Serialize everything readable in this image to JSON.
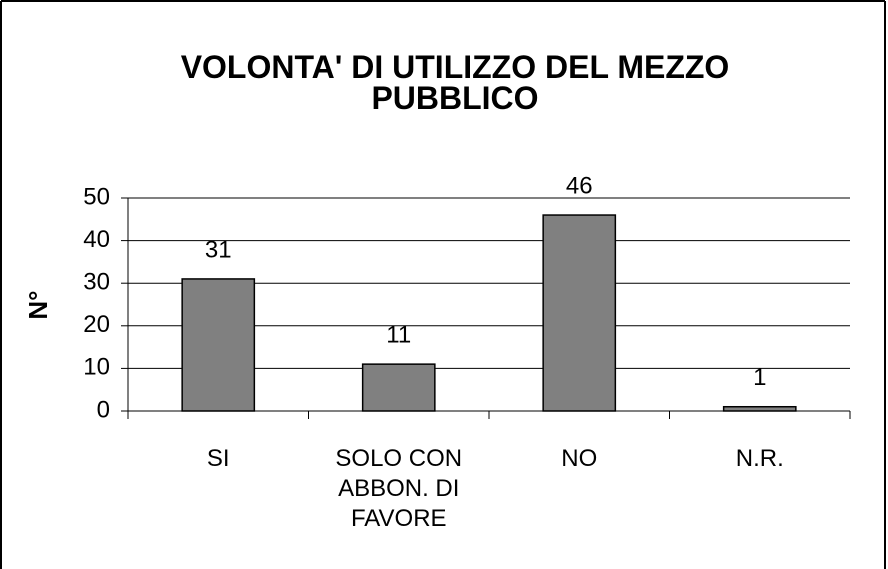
{
  "chart_data": {
    "type": "bar",
    "title": "VOLONTA' DI UTILIZZO DEL MEZZO PUBBLICO",
    "y_label": "N°",
    "categories": [
      "SI",
      "SOLO CON ABBON. DI FAVORE",
      "NO",
      "N.R."
    ],
    "values": [
      31,
      11,
      46,
      1
    ],
    "color": "#808080",
    "ylim": [
      0,
      50
    ],
    "yticks": [
      0,
      10,
      20,
      30,
      40,
      50
    ],
    "grid": true
  }
}
